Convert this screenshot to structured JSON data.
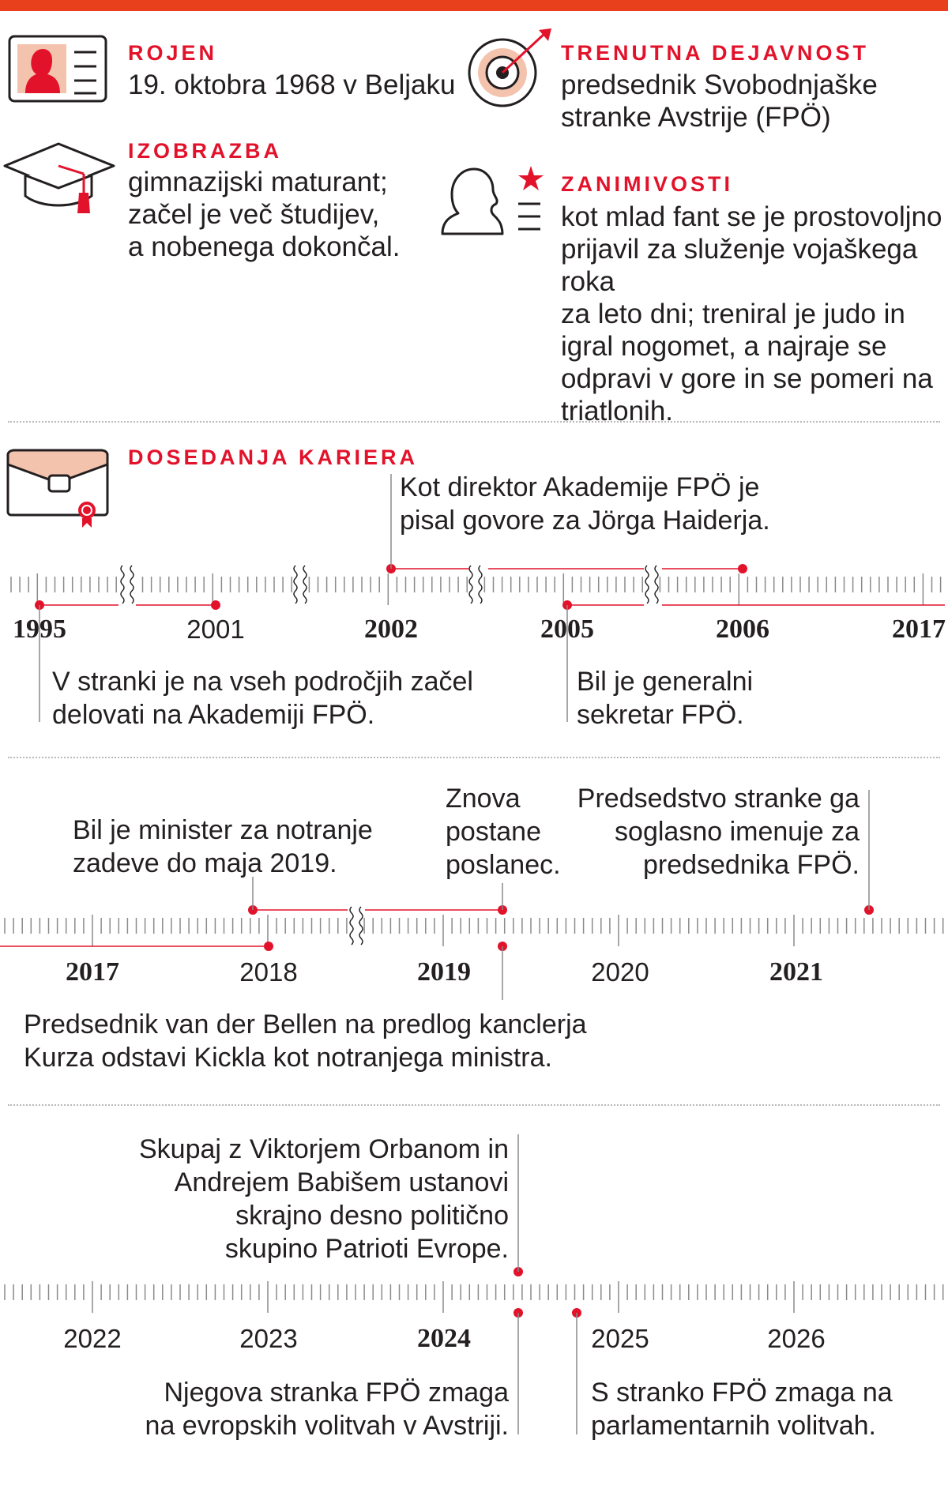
{
  "colors": {
    "accent": "#e3122b",
    "bar": "#e8401c",
    "line": "#e3122b",
    "ink": "#231f20",
    "pink": "#f4c3ae"
  },
  "profile": {
    "born": {
      "heading": "ROJEN",
      "text": "19. oktobra 1968 v Beljaku",
      "icon": "id-card-icon"
    },
    "education": {
      "heading": "IZOBRAZBA",
      "lines": [
        "gimnazijski maturant;",
        "začel je več študijev,",
        "a nobenega dokončal."
      ],
      "icon": "graduation-cap-icon"
    },
    "current": {
      "heading": "TRENUTNA DEJAVNOST",
      "lines": [
        "predsednik Svobodnjaške",
        "stranke Avstrije (FPÖ)"
      ],
      "icon": "target-icon"
    },
    "trivia": {
      "heading": "ZANIMIVOSTI",
      "lines": [
        "kot mlad fant se je prostovoljno",
        "prijavil za služenje vojaškega roka",
        "za leto dni; treniral je judo in",
        "igral nogomet, a najraje se",
        "odpravi v gore in se pomeri na",
        "triatlonih."
      ],
      "icon": "profile-star-icon"
    }
  },
  "career": {
    "heading": "DOSEDANJA KARIERA",
    "icon": "briefcase-icon",
    "rows": [
      {
        "years": [
          {
            "label": "1995",
            "bold": true
          },
          {
            "label": "2001",
            "bold": false
          },
          {
            "label": "2002",
            "bold": true
          },
          {
            "label": "2005",
            "bold": true
          },
          {
            "label": "2006",
            "bold": true
          },
          {
            "label": "2017",
            "bold": true
          }
        ],
        "events": [
          {
            "lines": [
              "V stranki je na vseh področjih začel",
              "delovati na Akademiji FPÖ."
            ]
          },
          {
            "lines": [
              "Kot direktor Akademije FPÖ je",
              "pisal govore za Jörga Haiderja."
            ]
          },
          {
            "lines": [
              "Bil je generalni",
              "sekretar FPÖ."
            ]
          }
        ]
      },
      {
        "years": [
          {
            "label": "2017",
            "bold": true
          },
          {
            "label": "2018",
            "bold": false
          },
          {
            "label": "2019",
            "bold": true
          },
          {
            "label": "2020",
            "bold": false
          },
          {
            "label": "2021",
            "bold": true
          }
        ],
        "events": [
          {
            "lines": [
              "Bil je minister za notranje",
              "zadeve do maja 2019."
            ]
          },
          {
            "lines": [
              "Znova",
              "postane",
              "poslanec."
            ]
          },
          {
            "lines": [
              "Predsedstvo stranke ga",
              "soglasno imenuje za",
              "predsednika FPÖ."
            ]
          },
          {
            "lines": [
              "Predsednik van der Bellen na predlog kanclerja",
              "Kurza odstavi Kickla kot notranjega ministra."
            ]
          }
        ]
      },
      {
        "years": [
          {
            "label": "2022",
            "bold": false
          },
          {
            "label": "2023",
            "bold": false
          },
          {
            "label": "2024",
            "bold": true
          },
          {
            "label": "2025",
            "bold": false
          },
          {
            "label": "2026",
            "bold": false
          }
        ],
        "events": [
          {
            "lines": [
              "Skupaj z Viktorjem Orbanom in",
              "Andrejem Babišem ustanovi",
              "skrajno desno politično",
              "skupino Patrioti Evrope."
            ]
          },
          {
            "lines": [
              "Njegova stranka FPÖ zmaga",
              "na evropskih volitvah v Avstriji."
            ]
          },
          {
            "lines": [
              "S stranko FPÖ zmaga na",
              "parlamentarnih volitvah."
            ]
          }
        ]
      }
    ]
  }
}
